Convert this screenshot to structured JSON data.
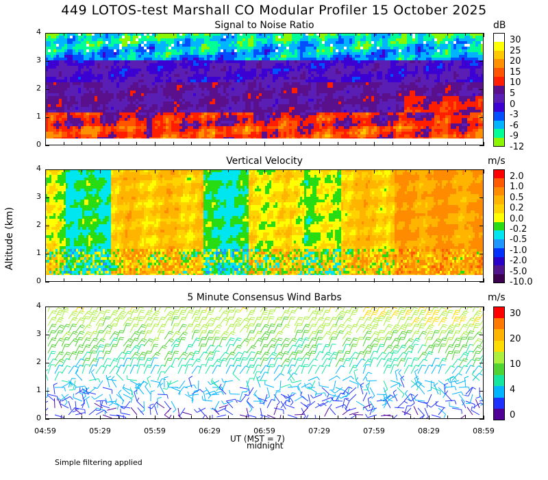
{
  "title": "449 LOTOS-test Marshall CO Modular Profiler 15 October 2025",
  "y_axis_label": "Altitude (km)",
  "x_axis_label": "UT (MST = 7)",
  "midnight_label": "midnight",
  "footnote": "Simple filtering applied",
  "x_ticks": [
    "04:59",
    "05:29",
    "05:59",
    "06:29",
    "06:59",
    "07:29",
    "07:59",
    "08:29",
    "08:59"
  ],
  "y_ticks": [
    "0",
    "1",
    "2",
    "3",
    "4"
  ],
  "chart_data": [
    {
      "type": "heatmap",
      "title": "Signal to Noise Ratio",
      "units": "dB",
      "xlabel": "UT (MST = 7)",
      "ylabel": "Altitude (km)",
      "ylim": [
        0,
        4
      ],
      "x_range": [
        "04:59",
        "08:59"
      ],
      "x_ticks": [
        "04:59",
        "05:29",
        "05:59",
        "06:29",
        "06:59",
        "07:29",
        "07:59",
        "08:29",
        "08:59"
      ],
      "y_ticks": [
        "0",
        "1",
        "2",
        "3",
        "4"
      ],
      "colorbar": {
        "labels": [
          "30",
          "25",
          "20",
          "15",
          "10",
          "5",
          "0",
          "-3",
          "-6",
          "-9",
          "-12"
        ],
        "colors": [
          "#ffffff",
          "#ffff00",
          "#ffc800",
          "#ff9100",
          "#ff5500",
          "#ff1e00",
          "#5a0f8c",
          "#5a1eb4",
          "#3c00d2",
          "#0050ff",
          "#00b4ff",
          "#00ff96",
          "#8cf500"
        ]
      },
      "typical_profile": [
        {
          "altitude_km": 0.5,
          "snr_db": 15
        },
        {
          "altitude_km": 1.2,
          "snr_db": 8
        },
        {
          "altitude_km": 1.8,
          "snr_db": 2
        },
        {
          "altitude_km": 2.5,
          "snr_db": 3
        },
        {
          "altitude_km": 3.1,
          "snr_db": -3
        },
        {
          "altitude_km": 3.6,
          "snr_db": -9
        }
      ]
    },
    {
      "type": "heatmap",
      "title": "Vertical Velocity",
      "units": "m/s",
      "xlabel": "UT (MST = 7)",
      "ylabel": "Altitude (km)",
      "ylim": [
        0,
        4
      ],
      "x_range": [
        "04:59",
        "08:59"
      ],
      "x_ticks": [
        "04:59",
        "05:29",
        "05:59",
        "06:29",
        "06:59",
        "07:29",
        "07:59",
        "08:29",
        "08:59"
      ],
      "y_ticks": [
        "0",
        "1",
        "2",
        "3",
        "4"
      ],
      "colorbar": {
        "labels": [
          "2.0",
          "1.0",
          "0.5",
          "0.2",
          "0.0",
          "-0.2",
          "-0.5",
          "-1.0",
          "-2.0",
          "-5.0",
          "-10.0"
        ],
        "colors": [
          "#ff0000",
          "#ff5a00",
          "#ff8c00",
          "#ffb400",
          "#ffd200",
          "#ffff00",
          "#28dc14",
          "#00e6f0",
          "#1e96ff",
          "#0032ff",
          "#2800c8",
          "#50148c",
          "#3c0050"
        ]
      },
      "time_segments": [
        {
          "start": "04:59",
          "end": "05:10",
          "w_mps": -0.2
        },
        {
          "start": "05:10",
          "end": "05:35",
          "w_mps": -0.5
        },
        {
          "start": "05:35",
          "end": "06:25",
          "w_mps": 0.2
        },
        {
          "start": "06:25",
          "end": "06:50",
          "w_mps": -0.5
        },
        {
          "start": "06:50",
          "end": "07:20",
          "w_mps": 0.0
        },
        {
          "start": "07:20",
          "end": "07:40",
          "w_mps": -0.2
        },
        {
          "start": "07:40",
          "end": "08:10",
          "w_mps": 0.2
        },
        {
          "start": "08:10",
          "end": "08:59",
          "w_mps": 0.5
        }
      ]
    },
    {
      "type": "scatter",
      "title": "5 Minute Consensus Wind Barbs",
      "units": "m/s",
      "xlabel": "UT (MST = 7)",
      "ylabel": "Altitude (km)",
      "ylim": [
        0,
        4
      ],
      "x_range": [
        "04:59",
        "08:59"
      ],
      "x_ticks": [
        "04:59",
        "05:29",
        "05:59",
        "06:29",
        "06:59",
        "07:29",
        "07:59",
        "08:29",
        "08:59"
      ],
      "y_ticks": [
        "0",
        "1",
        "2",
        "3",
        "4"
      ],
      "colorbar": {
        "labels": [
          "30",
          "20",
          "10",
          "4",
          "0"
        ],
        "colors": [
          "#ff0000",
          "#ff7800",
          "#ffb400",
          "#ffdc00",
          "#aaf03c",
          "#50d232",
          "#14e6a0",
          "#00b4ff",
          "#1e32ff",
          "#500096"
        ]
      },
      "speed_by_altitude": [
        {
          "altitude_km": 0.5,
          "speed_mps": 3
        },
        {
          "altitude_km": 1.5,
          "speed_mps": 6
        },
        {
          "altitude_km": 2.5,
          "speed_mps": 9
        },
        {
          "altitude_km": 3.5,
          "speed_mps": 12
        }
      ]
    }
  ]
}
